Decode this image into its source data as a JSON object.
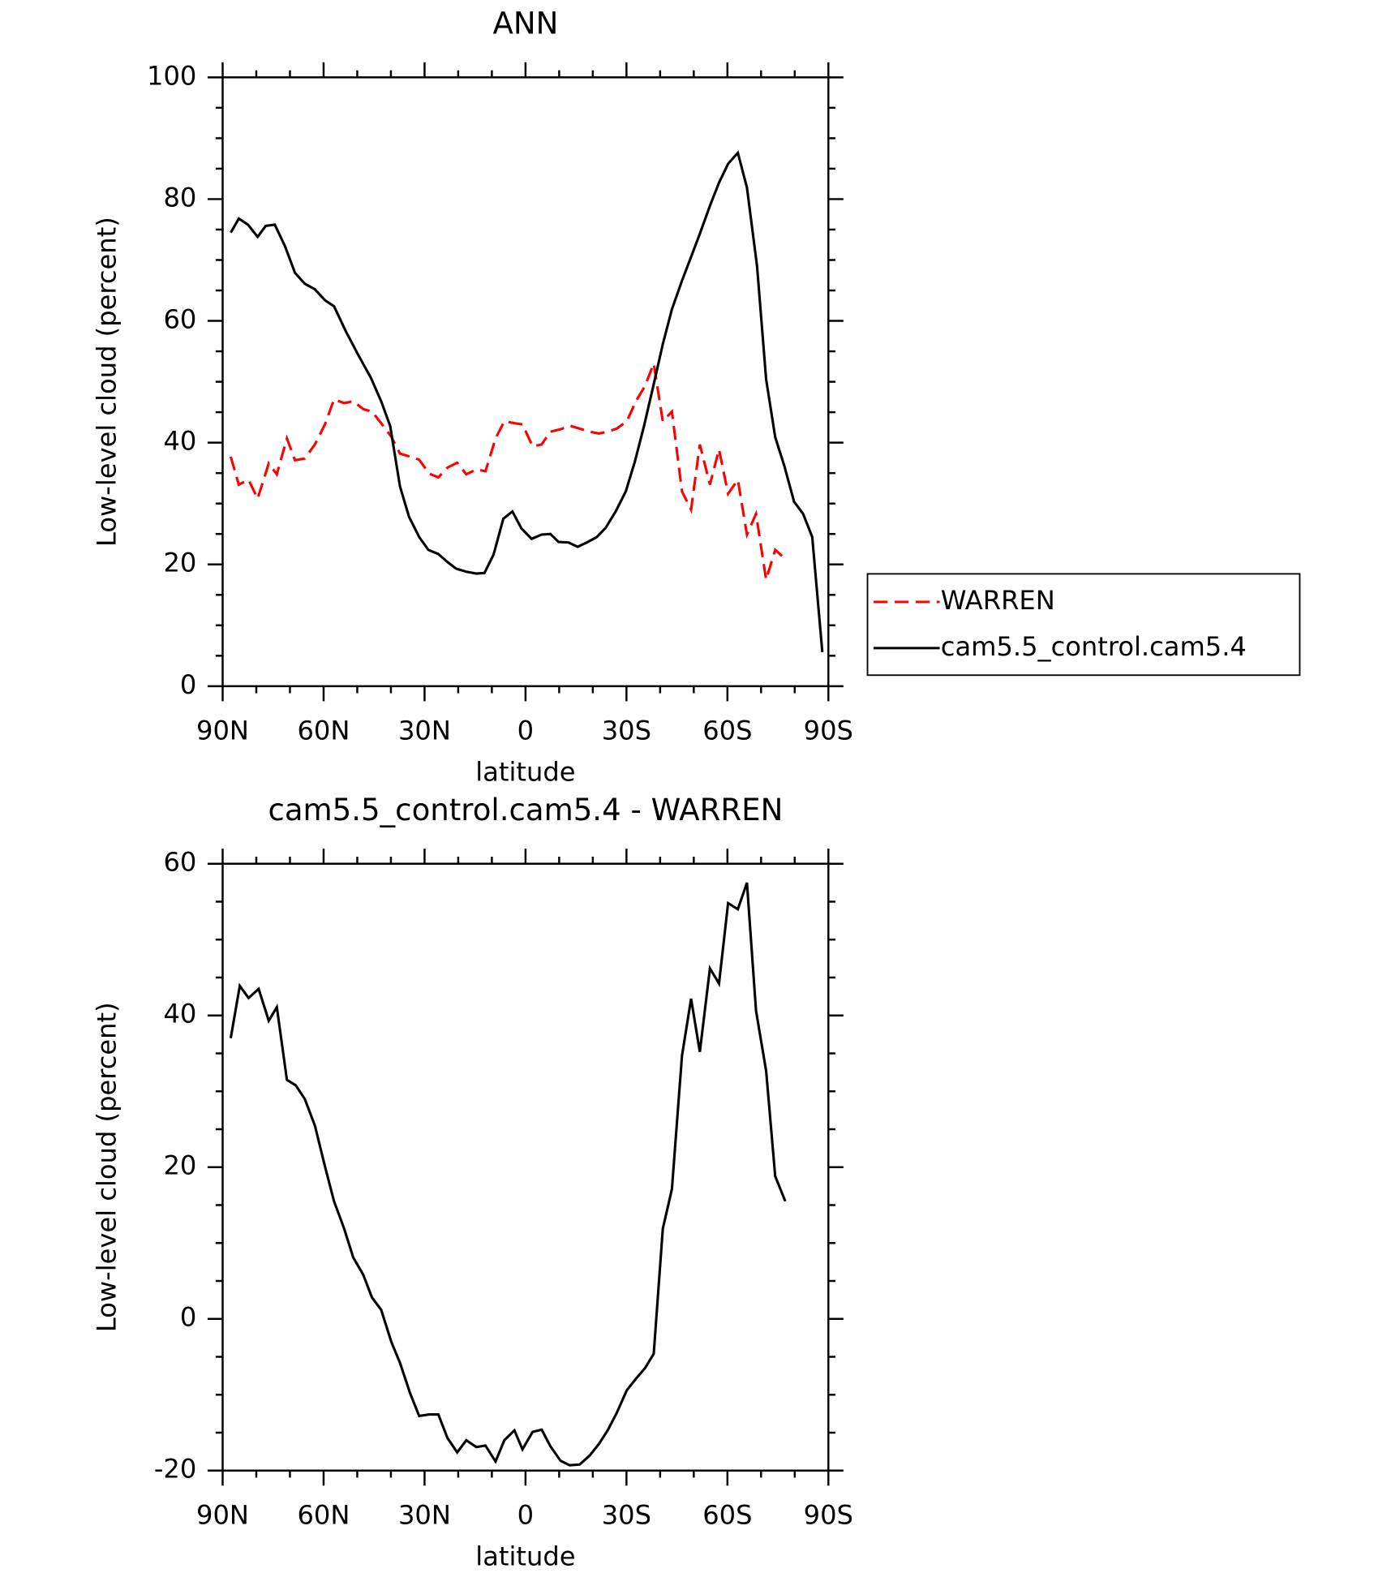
{
  "chart_data": [
    {
      "type": "line",
      "title": "ANN",
      "xlabel": "latitude",
      "ylabel": "Low-level cloud (percent)",
      "xlim": [
        90,
        -90
      ],
      "xticks": [
        {
          "value": 90,
          "label": "90N"
        },
        {
          "value": 60,
          "label": "60N"
        },
        {
          "value": 30,
          "label": "30N"
        },
        0,
        {
          "value": -30,
          "label": "30S"
        },
        {
          "value": -60,
          "label": "60S"
        },
        {
          "value": -90,
          "label": "90S"
        }
      ],
      "ylim": [
        0,
        100
      ],
      "yticks": [
        0,
        20,
        40,
        60,
        80,
        100
      ],
      "legend": "right",
      "series": [
        {
          "name": "WARREN",
          "color": "#ff0000",
          "line_style": "dashed",
          "x": [
            87.6,
            85.2,
            82.3,
            79.6,
            76.3,
            73.9,
            70.9,
            68.5,
            65.6,
            62.6,
            59.6,
            56.9,
            53.9,
            51.2,
            48.2,
            45.6,
            42.9,
            39.9,
            37.3,
            34.3,
            31.6,
            28.6,
            25.9,
            23.2,
            20.3,
            17.6,
            14.6,
            11.9,
            8.9,
            6.3,
            3.3,
            0.9,
            -2.1,
            -4.8,
            -7.4,
            -10.4,
            -13.1,
            -16.1,
            -19.1,
            -21.8,
            -24.4,
            -27.1,
            -30.1,
            -32.8,
            -35.5,
            -38.1,
            -40.8,
            -43.5,
            -46.5,
            -49.2,
            -51.8,
            -54.8,
            -57.5,
            -60.2,
            -63.1,
            -65.8,
            -68.5,
            -71.5,
            -74.2,
            -77.2
          ],
          "values": [
            37.7,
            33.1,
            33.9,
            30.8,
            36.6,
            34.8,
            40.7,
            37.1,
            37.4,
            39.7,
            43.0,
            47.1,
            46.5,
            46.8,
            45.5,
            45.1,
            43.2,
            41.0,
            38.2,
            37.7,
            37.2,
            34.9,
            34.3,
            35.9,
            36.7,
            34.8,
            35.6,
            35.3,
            40.7,
            43.5,
            43.2,
            43.0,
            39.4,
            39.7,
            41.8,
            42.2,
            42.8,
            42.3,
            41.8,
            41.5,
            41.8,
            42.3,
            43.5,
            46.8,
            49.3,
            53.0,
            43.5,
            45.1,
            32.0,
            29.0,
            39.7,
            33.1,
            38.9,
            31.6,
            33.9,
            24.9,
            28.3,
            17.5,
            22.4,
            20.9
          ]
        },
        {
          "name": "cam5.5_control.cam5.4",
          "color": "#000000",
          "line_style": "solid",
          "x": [
            87.6,
            85.2,
            82.5,
            79.6,
            77.2,
            74.5,
            71.5,
            68.5,
            65.6,
            62.6,
            59.6,
            56.9,
            53.4,
            49.8,
            45.9,
            42.9,
            40.2,
            37.3,
            34.6,
            31.6,
            28.9,
            25.9,
            23.2,
            20.6,
            17.6,
            14.6,
            12.2,
            9.5,
            6.6,
            3.9,
            1.2,
            -1.8,
            -4.8,
            -7.4,
            -9.8,
            -12.8,
            -15.5,
            -18.2,
            -21.2,
            -23.8,
            -26.8,
            -29.8,
            -32.5,
            -35.2,
            -38.1,
            -40.8,
            -43.5,
            -46.5,
            -49.2,
            -51.8,
            -54.8,
            -57.5,
            -60.2,
            -63.1,
            -65.8,
            -68.8,
            -71.5,
            -74.2,
            -76.9,
            -79.8,
            -82.5,
            -85.2,
            -88.2
          ],
          "values": [
            74.5,
            76.8,
            75.8,
            73.8,
            75.6,
            75.8,
            72.3,
            67.9,
            66.1,
            65.2,
            63.4,
            62.4,
            58.3,
            54.5,
            50.6,
            46.8,
            42.7,
            32.8,
            27.8,
            24.5,
            22.4,
            21.7,
            20.4,
            19.3,
            18.8,
            18.5,
            18.6,
            21.6,
            27.5,
            28.7,
            25.9,
            24.2,
            24.9,
            25.0,
            23.7,
            23.6,
            22.9,
            23.6,
            24.5,
            26.0,
            28.7,
            32.0,
            36.9,
            42.7,
            49.6,
            56.2,
            61.9,
            66.6,
            70.5,
            74.3,
            78.9,
            82.7,
            85.8,
            87.6,
            81.9,
            69.0,
            50.4,
            40.9,
            36.2,
            30.3,
            28.3,
            24.5,
            5.6
          ]
        }
      ]
    },
    {
      "type": "line",
      "title": "cam5.5_control.cam5.4 - WARREN",
      "xlabel": "latitude",
      "ylabel": "Low-level cloud (percent)",
      "xlim": [
        90,
        -90
      ],
      "xticks": [
        {
          "value": 90,
          "label": "90N"
        },
        {
          "value": 60,
          "label": "60N"
        },
        {
          "value": 30,
          "label": "30N"
        },
        0,
        {
          "value": -30,
          "label": "30S"
        },
        {
          "value": -60,
          "label": "60S"
        },
        {
          "value": -90,
          "label": "90S"
        }
      ],
      "ylim": [
        -20,
        60
      ],
      "yticks": [
        -20,
        0,
        20,
        40,
        60
      ],
      "series": [
        {
          "color": "#000000",
          "line_style": "solid",
          "x": [
            87.6,
            84.9,
            82.3,
            79.3,
            76.3,
            73.9,
            70.9,
            68.3,
            65.6,
            62.6,
            59.6,
            56.9,
            53.9,
            51.2,
            48.2,
            45.6,
            42.9,
            39.9,
            37.3,
            34.3,
            31.6,
            28.6,
            25.9,
            23.2,
            20.3,
            17.6,
            14.6,
            11.9,
            8.9,
            6.3,
            3.3,
            0.9,
            -2.1,
            -4.8,
            -7.4,
            -10.4,
            -13.1,
            -16.1,
            -19.1,
            -21.8,
            -24.4,
            -27.1,
            -30.1,
            -32.8,
            -35.5,
            -38.1,
            -40.8,
            -43.5,
            -46.5,
            -49.2,
            -51.8,
            -54.8,
            -57.5,
            -60.2,
            -63.1,
            -65.8,
            -68.5,
            -71.5,
            -74.2,
            -77.2
          ],
          "values": [
            37.0,
            43.9,
            42.3,
            43.5,
            39.3,
            41.1,
            31.5,
            30.8,
            29.0,
            25.5,
            20.1,
            15.5,
            11.9,
            8.1,
            5.8,
            2.8,
            1.2,
            -3.0,
            -5.8,
            -9.8,
            -12.8,
            -12.6,
            -12.6,
            -15.7,
            -17.6,
            -16.0,
            -16.9,
            -16.7,
            -18.8,
            -16.0,
            -14.7,
            -17.2,
            -14.9,
            -14.6,
            -16.8,
            -18.7,
            -19.3,
            -19.2,
            -18.0,
            -16.5,
            -14.7,
            -12.4,
            -9.4,
            -7.9,
            -6.5,
            -4.6,
            11.9,
            17.1,
            34.7,
            42.2,
            35.2,
            46.2,
            44.2,
            54.8,
            54.0,
            57.5,
            40.6,
            32.7,
            18.8,
            15.5
          ]
        }
      ]
    }
  ]
}
